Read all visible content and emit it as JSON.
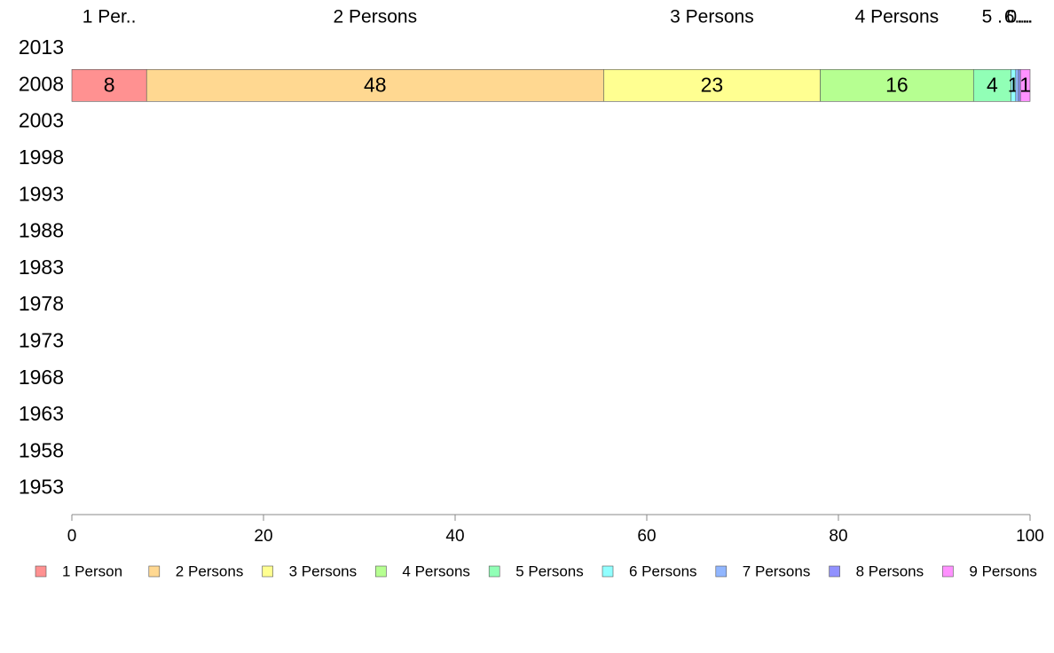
{
  "chart_data": {
    "type": "bar",
    "orientation": "horizontal",
    "stacked": true,
    "categories": [
      "2013",
      "2008",
      "2003",
      "1998",
      "1993",
      "1988",
      "1983",
      "1978",
      "1973",
      "1968",
      "1963",
      "1958",
      "1953"
    ],
    "series": [
      {
        "name": "1 Person",
        "color": "#ff9191",
        "values": [
          null,
          7.8,
          null,
          null,
          null,
          null,
          null,
          null,
          null,
          null,
          null,
          null,
          null
        ]
      },
      {
        "name": "2 Persons",
        "color": "#ffd891",
        "values": [
          null,
          47.7,
          null,
          null,
          null,
          null,
          null,
          null,
          null,
          null,
          null,
          null,
          null
        ]
      },
      {
        "name": "3 Persons",
        "color": "#ffff91",
        "values": [
          null,
          22.6,
          null,
          null,
          null,
          null,
          null,
          null,
          null,
          null,
          null,
          null,
          null
        ]
      },
      {
        "name": "4 Persons",
        "color": "#b6ff91",
        "values": [
          null,
          16.0,
          null,
          null,
          null,
          null,
          null,
          null,
          null,
          null,
          null,
          null,
          null
        ]
      },
      {
        "name": "5 Persons",
        "color": "#91ffb6",
        "values": [
          null,
          3.9,
          null,
          null,
          null,
          null,
          null,
          null,
          null,
          null,
          null,
          null,
          null
        ]
      },
      {
        "name": "6 Persons",
        "color": "#91ffff",
        "values": [
          null,
          0.5,
          null,
          null,
          null,
          null,
          null,
          null,
          null,
          null,
          null,
          null,
          null
        ]
      },
      {
        "name": "7 Persons",
        "color": "#91b6ff",
        "values": [
          null,
          0.3,
          null,
          null,
          null,
          null,
          null,
          null,
          null,
          null,
          null,
          null,
          null
        ]
      },
      {
        "name": "8 Persons",
        "color": "#9191ff",
        "values": [
          null,
          0.2,
          null,
          null,
          null,
          null,
          null,
          null,
          null,
          null,
          null,
          null,
          null
        ]
      },
      {
        "name": "9 Persons",
        "color": "#ff91ff",
        "values": [
          null,
          1.0,
          null,
          null,
          null,
          null,
          null,
          null,
          null,
          null,
          null,
          null,
          null
        ]
      }
    ],
    "segment_labels": [
      "8",
      "48",
      "23",
      "16",
      "4",
      "1",
      "",
      "",
      "1"
    ],
    "top_labels": [
      "1 Per..",
      "2 Persons",
      "3 Persons",
      "4 Persons",
      "5 .",
      "",
      "6...",
      "0...",
      "..."
    ],
    "xlim": [
      0,
      100
    ],
    "xticks": [
      0,
      20,
      40,
      60,
      80,
      100
    ],
    "xlabel": "",
    "ylabel": "",
    "title": "",
    "grid": false,
    "legend_position": "bottom"
  }
}
